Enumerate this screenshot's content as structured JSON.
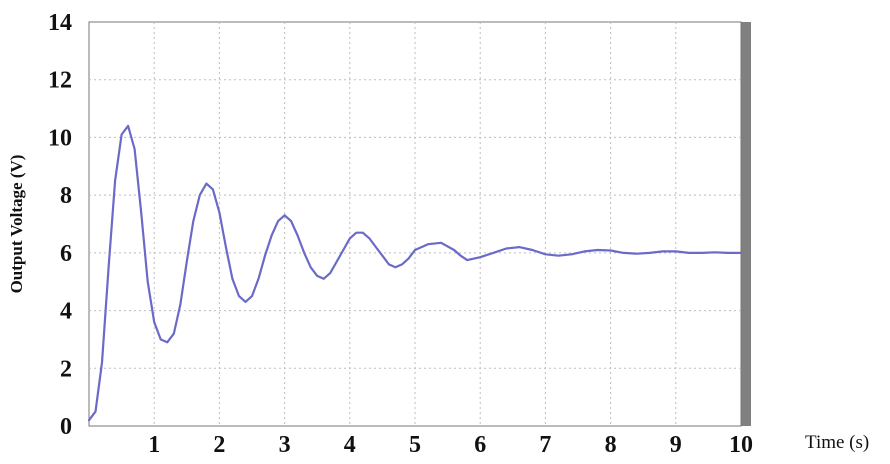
{
  "chart_data": {
    "type": "line",
    "xlabel": "Time (s)",
    "ylabel": "Output Voltage (V)",
    "xlim": [
      0,
      10
    ],
    "ylim": [
      0,
      14
    ],
    "xticks": [
      1,
      2,
      3,
      4,
      5,
      6,
      7,
      8,
      9,
      10
    ],
    "xtick_labels": [
      "1",
      "2",
      "3",
      "4",
      "5",
      "6",
      "7",
      "8",
      "9",
      "10"
    ],
    "yticks": [
      0,
      2,
      4,
      6,
      8,
      10,
      12,
      14
    ],
    "ytick_labels": [
      "0",
      "2",
      "4",
      "6",
      "8",
      "10",
      "12",
      "14"
    ],
    "grid": true,
    "series": [
      {
        "color": "#6a6ac8",
        "x": [
          0,
          0.1,
          0.2,
          0.3,
          0.4,
          0.5,
          0.6,
          0.7,
          0.8,
          0.9,
          1.0,
          1.1,
          1.2,
          1.3,
          1.4,
          1.5,
          1.6,
          1.7,
          1.8,
          1.9,
          2.0,
          2.1,
          2.2,
          2.3,
          2.4,
          2.5,
          2.6,
          2.7,
          2.8,
          2.9,
          3.0,
          3.1,
          3.2,
          3.3,
          3.4,
          3.5,
          3.6,
          3.7,
          3.8,
          3.9,
          4.0,
          4.1,
          4.2,
          4.3,
          4.4,
          4.5,
          4.6,
          4.7,
          4.8,
          4.9,
          5.0,
          5.2,
          5.4,
          5.6,
          5.7,
          5.8,
          6.0,
          6.2,
          6.4,
          6.6,
          6.8,
          7.0,
          7.2,
          7.4,
          7.6,
          7.8,
          8.0,
          8.2,
          8.4,
          8.6,
          8.8,
          9.0,
          9.2,
          9.4,
          9.6,
          9.8,
          10.0
        ],
        "y": [
          0.2,
          0.5,
          2.2,
          5.5,
          8.5,
          10.1,
          10.4,
          9.6,
          7.4,
          5.0,
          3.6,
          3.0,
          2.9,
          3.2,
          4.2,
          5.7,
          7.1,
          8.0,
          8.4,
          8.2,
          7.4,
          6.2,
          5.1,
          4.5,
          4.3,
          4.5,
          5.1,
          5.9,
          6.6,
          7.1,
          7.3,
          7.1,
          6.6,
          6.0,
          5.5,
          5.2,
          5.1,
          5.3,
          5.7,
          6.1,
          6.5,
          6.7,
          6.7,
          6.5,
          6.2,
          5.9,
          5.6,
          5.5,
          5.6,
          5.8,
          6.1,
          6.3,
          6.35,
          6.1,
          5.9,
          5.75,
          5.85,
          6.0,
          6.15,
          6.2,
          6.1,
          5.95,
          5.9,
          5.95,
          6.05,
          6.1,
          6.08,
          6.0,
          5.97,
          6.0,
          6.05,
          6.05,
          6.0,
          6.0,
          6.02,
          6.0,
          6.0
        ]
      }
    ]
  }
}
